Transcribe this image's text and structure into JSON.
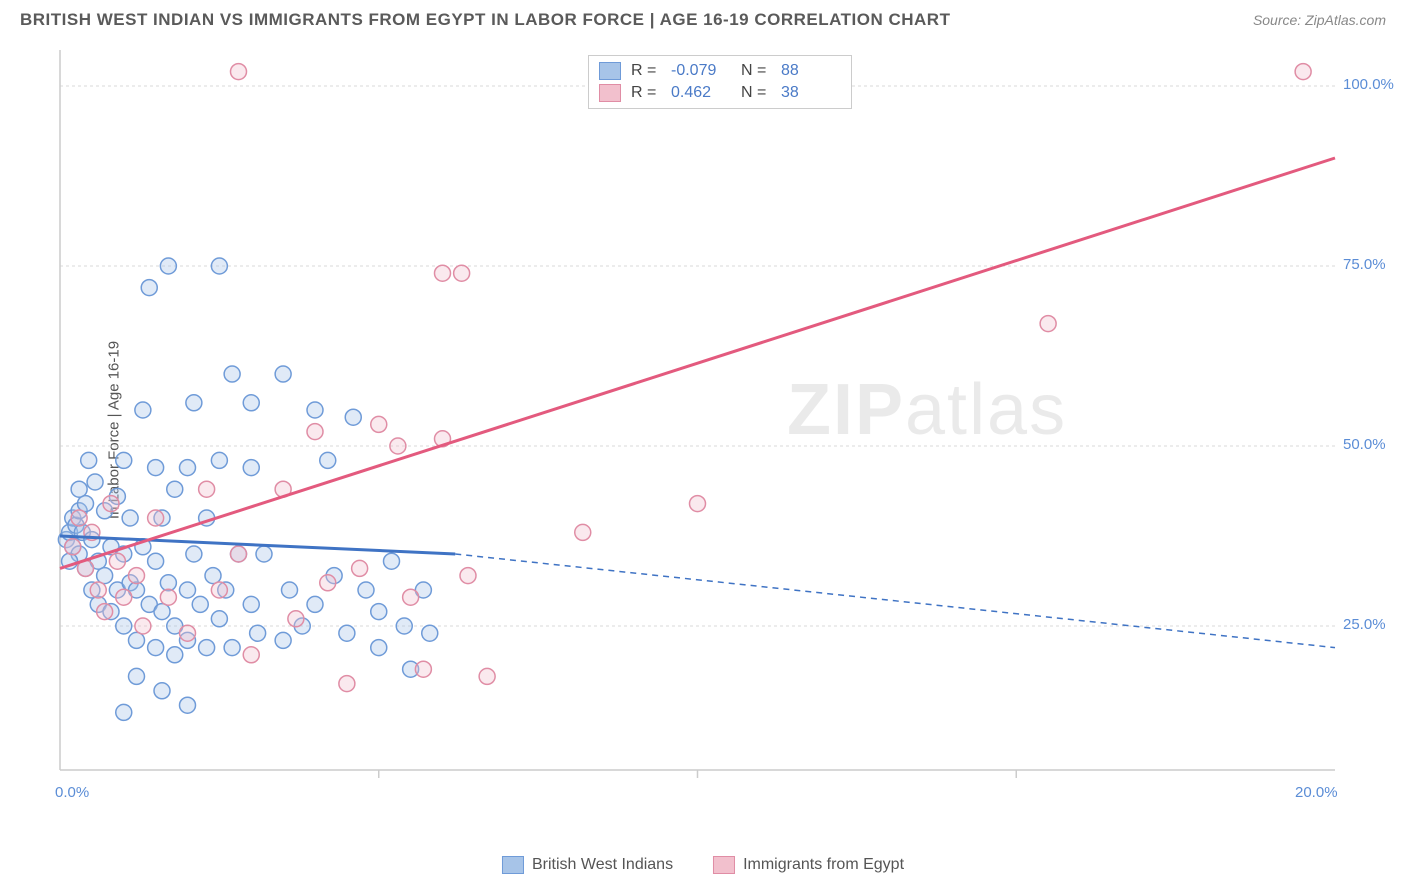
{
  "header": {
    "title": "BRITISH WEST INDIAN VS IMMIGRANTS FROM EGYPT IN LABOR FORCE | AGE 16-19 CORRELATION CHART",
    "source": "Source: ZipAtlas.com"
  },
  "watermark": {
    "part1": "ZIP",
    "part2": "atlas"
  },
  "chart": {
    "type": "scatter",
    "y_axis_label": "In Labor Force | Age 16-19",
    "xlim": [
      0,
      20
    ],
    "ylim": [
      5,
      105
    ],
    "x_ticks": [
      {
        "value": 0,
        "label": "0.0%"
      },
      {
        "value": 20,
        "label": "20.0%"
      }
    ],
    "y_ticks": [
      {
        "value": 25,
        "label": "25.0%"
      },
      {
        "value": 50,
        "label": "50.0%"
      },
      {
        "value": 75,
        "label": "75.0%"
      },
      {
        "value": 100,
        "label": "100.0%"
      }
    ],
    "x_grid_values": [
      5,
      10,
      15
    ],
    "grid_color": "#d8d8d8",
    "axis_color": "#cccccc",
    "background_color": "#ffffff",
    "tick_label_color": "#5b8dd6",
    "marker_radius": 8,
    "marker_fill_opacity": 0.35,
    "marker_stroke_width": 1.5,
    "series": [
      {
        "name": "British West Indians",
        "color_fill": "#a7c4e8",
        "color_stroke": "#6f9bd8",
        "trend_color": "#3f73c4",
        "R": "-0.079",
        "N": "88",
        "trend_line": {
          "x1": 0,
          "y1": 37.5,
          "x2": 6.2,
          "y2": 35,
          "extend_x2": 20,
          "extend_y2": 22
        },
        "points": [
          [
            0.1,
            37
          ],
          [
            0.15,
            38
          ],
          [
            0.2,
            40
          ],
          [
            0.2,
            36
          ],
          [
            0.25,
            39
          ],
          [
            0.3,
            35
          ],
          [
            0.3,
            41
          ],
          [
            0.35,
            38
          ],
          [
            0.4,
            33
          ],
          [
            0.4,
            42
          ],
          [
            0.5,
            37
          ],
          [
            0.5,
            30
          ],
          [
            0.55,
            45
          ],
          [
            0.6,
            34
          ],
          [
            0.6,
            28
          ],
          [
            0.7,
            32
          ],
          [
            0.7,
            41
          ],
          [
            0.8,
            36
          ],
          [
            0.8,
            27
          ],
          [
            0.9,
            30
          ],
          [
            0.9,
            43
          ],
          [
            1.0,
            35
          ],
          [
            1.0,
            25
          ],
          [
            1.0,
            48
          ],
          [
            1.1,
            31
          ],
          [
            1.1,
            40
          ],
          [
            1.2,
            30
          ],
          [
            1.2,
            23
          ],
          [
            1.3,
            55
          ],
          [
            1.3,
            36
          ],
          [
            1.4,
            28
          ],
          [
            1.4,
            72
          ],
          [
            1.5,
            22
          ],
          [
            1.5,
            34
          ],
          [
            1.5,
            47
          ],
          [
            1.6,
            27
          ],
          [
            1.6,
            40
          ],
          [
            1.7,
            75
          ],
          [
            1.7,
            31
          ],
          [
            1.8,
            25
          ],
          [
            1.8,
            21
          ],
          [
            1.8,
            44
          ],
          [
            1.2,
            18
          ],
          [
            2.0,
            47
          ],
          [
            2.0,
            30
          ],
          [
            2.0,
            23
          ],
          [
            2.1,
            56
          ],
          [
            2.1,
            35
          ],
          [
            2.2,
            28
          ],
          [
            2.0,
            14
          ],
          [
            2.3,
            22
          ],
          [
            2.3,
            40
          ],
          [
            2.4,
            32
          ],
          [
            2.5,
            26
          ],
          [
            2.5,
            48
          ],
          [
            2.5,
            75
          ],
          [
            2.6,
            30
          ],
          [
            2.7,
            22
          ],
          [
            2.7,
            60
          ],
          [
            2.8,
            35
          ],
          [
            3.0,
            47
          ],
          [
            3.0,
            56
          ],
          [
            3.0,
            28
          ],
          [
            3.1,
            24
          ],
          [
            3.2,
            35
          ],
          [
            3.5,
            60
          ],
          [
            3.5,
            23
          ],
          [
            3.6,
            30
          ],
          [
            3.8,
            25
          ],
          [
            4.0,
            55
          ],
          [
            4.0,
            28
          ],
          [
            4.2,
            48
          ],
          [
            4.3,
            32
          ],
          [
            4.5,
            24
          ],
          [
            4.6,
            54
          ],
          [
            4.8,
            30
          ],
          [
            5.0,
            27
          ],
          [
            5.0,
            22
          ],
          [
            5.2,
            34
          ],
          [
            5.4,
            25
          ],
          [
            5.5,
            19
          ],
          [
            5.7,
            30
          ],
          [
            5.8,
            24
          ],
          [
            1.0,
            13
          ],
          [
            1.6,
            16
          ],
          [
            0.3,
            44
          ],
          [
            0.45,
            48
          ],
          [
            0.15,
            34
          ]
        ]
      },
      {
        "name": "Immigrants from Egypt",
        "color_fill": "#f2c0cd",
        "color_stroke": "#e08da5",
        "trend_color": "#e35a7e",
        "R": "0.462",
        "N": "38",
        "trend_line": {
          "x1": 0,
          "y1": 33,
          "x2": 20,
          "y2": 90
        },
        "points": [
          [
            0.2,
            36
          ],
          [
            0.3,
            40
          ],
          [
            0.4,
            33
          ],
          [
            0.5,
            38
          ],
          [
            0.6,
            30
          ],
          [
            0.7,
            27
          ],
          [
            0.8,
            42
          ],
          [
            0.9,
            34
          ],
          [
            1.0,
            29
          ],
          [
            1.2,
            32
          ],
          [
            1.3,
            25
          ],
          [
            1.5,
            40
          ],
          [
            1.7,
            29
          ],
          [
            2.0,
            24
          ],
          [
            2.3,
            44
          ],
          [
            2.5,
            30
          ],
          [
            2.8,
            35
          ],
          [
            3.0,
            21
          ],
          [
            3.5,
            44
          ],
          [
            3.7,
            26
          ],
          [
            4.0,
            52
          ],
          [
            4.2,
            31
          ],
          [
            4.5,
            17
          ],
          [
            4.7,
            33
          ],
          [
            5.0,
            53
          ],
          [
            5.3,
            50
          ],
          [
            5.5,
            29
          ],
          [
            5.7,
            19
          ],
          [
            6.0,
            51
          ],
          [
            6.3,
            74
          ],
          [
            6.0,
            74
          ],
          [
            6.4,
            32
          ],
          [
            6.7,
            18
          ],
          [
            8.2,
            38
          ],
          [
            10.0,
            42
          ],
          [
            15.5,
            67
          ],
          [
            2.8,
            102
          ],
          [
            19.5,
            102
          ]
        ]
      }
    ]
  },
  "legend_bottom": [
    {
      "swatch_fill": "#a7c4e8",
      "swatch_stroke": "#6f9bd8",
      "label": "British West Indians"
    },
    {
      "swatch_fill": "#f2c0cd",
      "swatch_stroke": "#e08da5",
      "label": "Immigrants from Egypt"
    }
  ]
}
